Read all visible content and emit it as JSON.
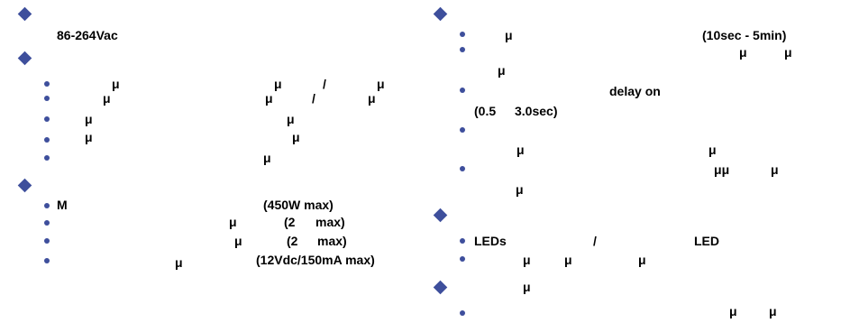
{
  "left_column": {
    "section_1": {
      "line": "86-264Vac"
    },
    "section_2": {
      "bullets": [
        [
          "μ",
          "μ",
          "/",
          "μ"
        ],
        [
          "μ",
          "μ",
          "/",
          "μ"
        ],
        [
          "μ",
          "μ"
        ],
        [
          "μ",
          "μ"
        ],
        [
          "μ"
        ]
      ]
    },
    "section_3": {
      "bullets": [
        [
          "M",
          "(450W max)"
        ],
        [
          "μ",
          "(2",
          "max)"
        ],
        [
          "μ",
          "(2",
          "max)"
        ],
        [
          "μ",
          "(12Vdc/150mA max)"
        ]
      ]
    }
  },
  "right_column": {
    "section_1": {
      "b1": [
        "μ",
        "(10sec - 5min)"
      ],
      "b2": [
        "μ",
        "μ"
      ],
      "b2_cont": "μ",
      "b3": "delay on",
      "b3_cont": [
        "(0.5",
        "3.0sec)"
      ],
      "b5": "μ",
      "b5_right": "μ",
      "b6": [
        "μμ",
        "μ"
      ],
      "b6_cont": "μ"
    },
    "section_2": {
      "b1": [
        "LEDs",
        "/",
        "LED"
      ],
      "b2": [
        "μ",
        "μ",
        "μ"
      ]
    },
    "section_3": {
      "line": "μ",
      "last": [
        "μ",
        "μ"
      ]
    }
  },
  "colors": {
    "marker": "#3e4f9c",
    "text": "#000000",
    "background": "#ffffff"
  }
}
